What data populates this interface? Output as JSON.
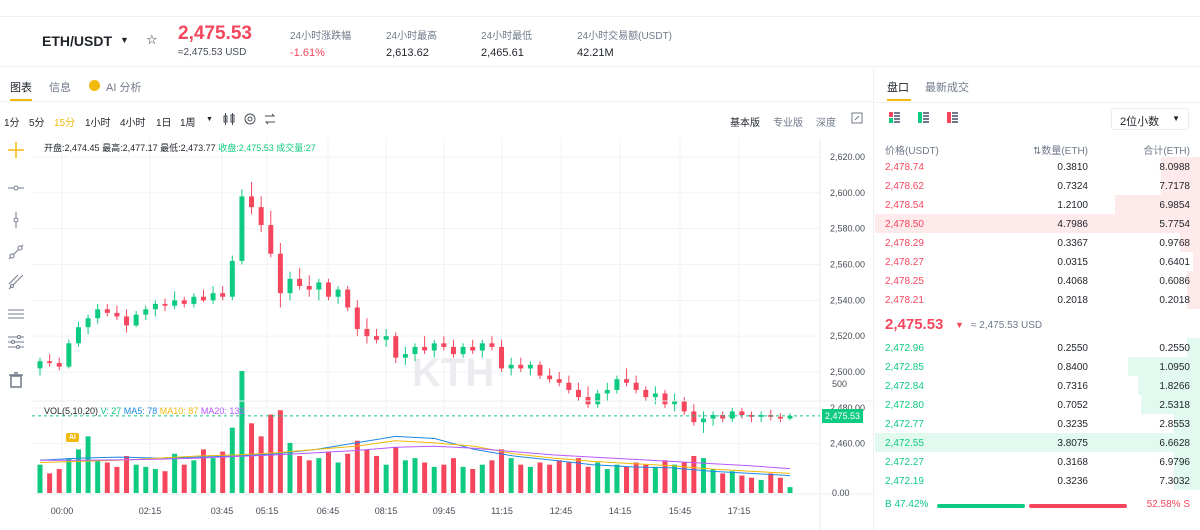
{
  "header": {
    "pair": "ETH/USDT",
    "pair_caret": "▼",
    "favorite_icon": "☆",
    "last_price": "2,475.53",
    "last_price_usd": "≈2,475.53 USD",
    "stats": [
      {
        "label": "24小时涨跌幅",
        "value": "-1.61%"
      },
      {
        "label": "24小时最高",
        "value": "2,613.62"
      },
      {
        "label": "24小时最低",
        "value": "2,465.61"
      },
      {
        "label": "24小时交易额(USDT)",
        "value": "42.21M"
      }
    ]
  },
  "chart_panel": {
    "tabs": [
      "图表",
      "信息",
      "AI 分析"
    ],
    "timeframes": [
      "1分",
      "5分",
      "15分",
      "1小时",
      "4小时",
      "1日",
      "1周"
    ],
    "timeframe_caret": "▼",
    "active_timeframe": "15分",
    "versions": [
      "基本版",
      "专业版",
      "深度"
    ],
    "active_version": "基本版",
    "drawing_tool_icons": [
      "crosshair-icon",
      "horizontal-line-icon",
      "vertical-line-icon",
      "trend-line-icon",
      "ray-icon",
      "fib-icon",
      "settings-lines-icon",
      "trash-icon"
    ],
    "ohlc": {
      "open": "开盘:2,474.45",
      "high": "最高:2,477.17",
      "low": "最低:2,473.77",
      "close": "收盘:2,475.53",
      "volume": "成交量:27"
    },
    "vol_legend": {
      "label": "VOL(5,10,20)",
      "v": "V: 27",
      "ma5": "MA5: 78",
      "ma10": "MA10: 87",
      "ma20": "MA20: 132"
    },
    "ai_badge": "AI",
    "watermark": "KTH",
    "current_price_tag": "2,475.53"
  },
  "chart_data": {
    "type": "candlestick",
    "price_axis": {
      "ticks": [
        "2,620.00",
        "2,600.00",
        "2,580.00",
        "2,560.00",
        "2,540.00",
        "2,520.00",
        "2,500.00",
        "2,480.00",
        "2,460.00"
      ],
      "range": [
        2450,
        2625
      ]
    },
    "volume_axis": {
      "ticks": [
        "500",
        "0.00"
      ],
      "range": [
        0,
        560
      ]
    },
    "time_labels": [
      "00:00",
      "02:15",
      "03:45",
      "05:15",
      "06:45",
      "08:15",
      "09:45",
      "11:15",
      "12:45",
      "14:15",
      "15:45",
      "17:15"
    ],
    "last_price": 2475.53,
    "colors": {
      "up": "#0ecb81",
      "down": "#f6465d",
      "ma5": "#f0b90b",
      "ma10": "#e28a4a",
      "ma20": "#b659ff"
    },
    "volume_ma": {
      "ma5": [
        150,
        160,
        165,
        160,
        165,
        170,
        180,
        200,
        230,
        260,
        250,
        200,
        170,
        150,
        130,
        120,
        115,
        100,
        90,
        80
      ],
      "ma10": [
        140,
        145,
        150,
        160,
        170,
        175,
        185,
        200,
        215,
        240,
        230,
        215,
        180,
        160,
        145,
        135,
        125,
        110,
        100,
        90
      ],
      "ma20": [
        150,
        150,
        152,
        155,
        160,
        168,
        175,
        185,
        195,
        210,
        215,
        205,
        190,
        175,
        165,
        155,
        145,
        135,
        125,
        112
      ]
    },
    "candles": [
      {
        "o": 2502,
        "h": 2508,
        "l": 2498,
        "c": 2506,
        "v": 130
      },
      {
        "o": 2506,
        "h": 2510,
        "l": 2503,
        "c": 2505,
        "v": 90
      },
      {
        "o": 2505,
        "h": 2508,
        "l": 2501,
        "c": 2503,
        "v": 110
      },
      {
        "o": 2503,
        "h": 2518,
        "l": 2502,
        "c": 2516,
        "v": 160
      },
      {
        "o": 2516,
        "h": 2528,
        "l": 2514,
        "c": 2525,
        "v": 200
      },
      {
        "o": 2525,
        "h": 2532,
        "l": 2521,
        "c": 2530,
        "v": 260
      },
      {
        "o": 2530,
        "h": 2538,
        "l": 2527,
        "c": 2535,
        "v": 150
      },
      {
        "o": 2535,
        "h": 2538,
        "l": 2531,
        "c": 2533,
        "v": 140
      },
      {
        "o": 2533,
        "h": 2537,
        "l": 2529,
        "c": 2531,
        "v": 120
      },
      {
        "o": 2531,
        "h": 2535,
        "l": 2522,
        "c": 2526,
        "v": 170
      },
      {
        "o": 2526,
        "h": 2534,
        "l": 2525,
        "c": 2532,
        "v": 130
      },
      {
        "o": 2532,
        "h": 2537,
        "l": 2529,
        "c": 2535,
        "v": 120
      },
      {
        "o": 2535,
        "h": 2540,
        "l": 2531,
        "c": 2538,
        "v": 110
      },
      {
        "o": 2538,
        "h": 2541,
        "l": 2534,
        "c": 2537,
        "v": 100
      },
      {
        "o": 2537,
        "h": 2545,
        "l": 2535,
        "c": 2540,
        "v": 180
      },
      {
        "o": 2540,
        "h": 2542,
        "l": 2536,
        "c": 2538,
        "v": 130
      },
      {
        "o": 2538,
        "h": 2544,
        "l": 2536,
        "c": 2542,
        "v": 150
      },
      {
        "o": 2542,
        "h": 2546,
        "l": 2539,
        "c": 2540,
        "v": 200
      },
      {
        "o": 2540,
        "h": 2548,
        "l": 2538,
        "c": 2544,
        "v": 160
      },
      {
        "o": 2544,
        "h": 2548,
        "l": 2540,
        "c": 2542,
        "v": 190
      },
      {
        "o": 2542,
        "h": 2565,
        "l": 2540,
        "c": 2562,
        "v": 300
      },
      {
        "o": 2562,
        "h": 2602,
        "l": 2560,
        "c": 2598,
        "v": 560
      },
      {
        "o": 2598,
        "h": 2606,
        "l": 2588,
        "c": 2592,
        "v": 320
      },
      {
        "o": 2592,
        "h": 2598,
        "l": 2578,
        "c": 2582,
        "v": 260
      },
      {
        "o": 2582,
        "h": 2590,
        "l": 2564,
        "c": 2566,
        "v": 360
      },
      {
        "o": 2566,
        "h": 2572,
        "l": 2536,
        "c": 2544,
        "v": 380
      },
      {
        "o": 2544,
        "h": 2556,
        "l": 2540,
        "c": 2552,
        "v": 230
      },
      {
        "o": 2552,
        "h": 2558,
        "l": 2546,
        "c": 2548,
        "v": 170
      },
      {
        "o": 2548,
        "h": 2554,
        "l": 2542,
        "c": 2546,
        "v": 150
      },
      {
        "o": 2546,
        "h": 2552,
        "l": 2540,
        "c": 2550,
        "v": 160
      },
      {
        "o": 2550,
        "h": 2552,
        "l": 2540,
        "c": 2542,
        "v": 190
      },
      {
        "o": 2542,
        "h": 2548,
        "l": 2538,
        "c": 2546,
        "v": 140
      },
      {
        "o": 2546,
        "h": 2548,
        "l": 2534,
        "c": 2536,
        "v": 180
      },
      {
        "o": 2536,
        "h": 2540,
        "l": 2520,
        "c": 2524,
        "v": 240
      },
      {
        "o": 2524,
        "h": 2530,
        "l": 2516,
        "c": 2520,
        "v": 200
      },
      {
        "o": 2520,
        "h": 2524,
        "l": 2516,
        "c": 2518,
        "v": 170
      },
      {
        "o": 2518,
        "h": 2524,
        "l": 2514,
        "c": 2520,
        "v": 130
      },
      {
        "o": 2520,
        "h": 2522,
        "l": 2505,
        "c": 2508,
        "v": 210
      },
      {
        "o": 2508,
        "h": 2514,
        "l": 2504,
        "c": 2510,
        "v": 150
      },
      {
        "o": 2510,
        "h": 2516,
        "l": 2506,
        "c": 2514,
        "v": 160
      },
      {
        "o": 2514,
        "h": 2520,
        "l": 2510,
        "c": 2512,
        "v": 140
      },
      {
        "o": 2512,
        "h": 2518,
        "l": 2508,
        "c": 2516,
        "v": 120
      },
      {
        "o": 2516,
        "h": 2520,
        "l": 2512,
        "c": 2514,
        "v": 130
      },
      {
        "o": 2514,
        "h": 2518,
        "l": 2508,
        "c": 2510,
        "v": 160
      },
      {
        "o": 2510,
        "h": 2516,
        "l": 2508,
        "c": 2514,
        "v": 120
      },
      {
        "o": 2514,
        "h": 2518,
        "l": 2510,
        "c": 2512,
        "v": 110
      },
      {
        "o": 2512,
        "h": 2518,
        "l": 2508,
        "c": 2516,
        "v": 130
      },
      {
        "o": 2516,
        "h": 2520,
        "l": 2512,
        "c": 2514,
        "v": 150
      },
      {
        "o": 2514,
        "h": 2518,
        "l": 2500,
        "c": 2502,
        "v": 200
      },
      {
        "o": 2502,
        "h": 2508,
        "l": 2498,
        "c": 2504,
        "v": 160
      },
      {
        "o": 2504,
        "h": 2508,
        "l": 2500,
        "c": 2502,
        "v": 130
      },
      {
        "o": 2502,
        "h": 2506,
        "l": 2498,
        "c": 2504,
        "v": 120
      },
      {
        "o": 2504,
        "h": 2506,
        "l": 2496,
        "c": 2498,
        "v": 140
      },
      {
        "o": 2498,
        "h": 2502,
        "l": 2494,
        "c": 2496,
        "v": 130
      },
      {
        "o": 2496,
        "h": 2500,
        "l": 2492,
        "c": 2494,
        "v": 150
      },
      {
        "o": 2494,
        "h": 2498,
        "l": 2488,
        "c": 2490,
        "v": 140
      },
      {
        "o": 2490,
        "h": 2494,
        "l": 2484,
        "c": 2486,
        "v": 160
      },
      {
        "o": 2486,
        "h": 2492,
        "l": 2480,
        "c": 2482,
        "v": 120
      },
      {
        "o": 2482,
        "h": 2490,
        "l": 2480,
        "c": 2488,
        "v": 140
      },
      {
        "o": 2488,
        "h": 2494,
        "l": 2484,
        "c": 2490,
        "v": 110
      },
      {
        "o": 2490,
        "h": 2498,
        "l": 2488,
        "c": 2496,
        "v": 130
      },
      {
        "o": 2496,
        "h": 2502,
        "l": 2492,
        "c": 2494,
        "v": 120
      },
      {
        "o": 2494,
        "h": 2498,
        "l": 2488,
        "c": 2490,
        "v": 140
      },
      {
        "o": 2490,
        "h": 2492,
        "l": 2484,
        "c": 2486,
        "v": 130
      },
      {
        "o": 2486,
        "h": 2492,
        "l": 2482,
        "c": 2488,
        "v": 120
      },
      {
        "o": 2488,
        "h": 2490,
        "l": 2480,
        "c": 2482,
        "v": 150
      },
      {
        "o": 2482,
        "h": 2488,
        "l": 2478,
        "c": 2484,
        "v": 130
      },
      {
        "o": 2484,
        "h": 2486,
        "l": 2476,
        "c": 2478,
        "v": 140
      },
      {
        "o": 2478,
        "h": 2482,
        "l": 2470,
        "c": 2472,
        "v": 170
      },
      {
        "o": 2472,
        "h": 2478,
        "l": 2466,
        "c": 2474,
        "v": 160
      },
      {
        "o": 2474,
        "h": 2478,
        "l": 2470,
        "c": 2476,
        "v": 110
      },
      {
        "o": 2476,
        "h": 2478,
        "l": 2472,
        "c": 2474,
        "v": 90
      },
      {
        "o": 2474,
        "h": 2480,
        "l": 2472,
        "c": 2478,
        "v": 100
      },
      {
        "o": 2478,
        "h": 2480,
        "l": 2474,
        "c": 2476,
        "v": 80
      },
      {
        "o": 2476,
        "h": 2478,
        "l": 2472,
        "c": 2475,
        "v": 70
      },
      {
        "o": 2475,
        "h": 2478,
        "l": 2472,
        "c": 2476,
        "v": 60
      },
      {
        "o": 2476,
        "h": 2479,
        "l": 2473,
        "c": 2475,
        "v": 90
      },
      {
        "o": 2475,
        "h": 2477,
        "l": 2472,
        "c": 2474,
        "v": 70
      },
      {
        "o": 2474,
        "h": 2477,
        "l": 2473,
        "c": 2475.53,
        "v": 27
      }
    ]
  },
  "order_book": {
    "tabs": [
      "盘口",
      "最新成交"
    ],
    "decimals": "2位小数",
    "decimals_caret": "▼",
    "headers": {
      "price": "价格(USDT)",
      "qty": "⇅数量(ETH)",
      "total": "合计(ETH)"
    },
    "asks": [
      {
        "price": "2,478.74",
        "qty": "0.3810",
        "total": "8.0988",
        "depth": 0.12
      },
      {
        "price": "2,478.62",
        "qty": "0.7324",
        "total": "7.7178",
        "depth": 0.12
      },
      {
        "price": "2,478.54",
        "qty": "1.2100",
        "total": "6.9854",
        "depth": 0.26
      },
      {
        "price": "2,478.50",
        "qty": "4.7986",
        "total": "5.7754",
        "depth": 1.0
      },
      {
        "price": "2,478.29",
        "qty": "0.3367",
        "total": "0.9768",
        "depth": 0.06
      },
      {
        "price": "2,478.27",
        "qty": "0.0315",
        "total": "0.6401",
        "depth": 0.02
      },
      {
        "price": "2,478.25",
        "qty": "0.4068",
        "total": "0.6086",
        "depth": 0.04
      },
      {
        "price": "2,478.21",
        "qty": "0.2018",
        "total": "0.2018",
        "depth": 0.04
      }
    ],
    "mid_price": "2,475.53",
    "mid_arrow": "▼",
    "mid_usd": "≈ 2,475.53 USD",
    "bids": [
      {
        "price": "2,472.96",
        "qty": "0.2550",
        "total": "0.2550",
        "depth": 0.04
      },
      {
        "price": "2,472.85",
        "qty": "0.8400",
        "total": "1.0950",
        "depth": 0.22
      },
      {
        "price": "2,472.84",
        "qty": "0.7316",
        "total": "1.8266",
        "depth": 0.19
      },
      {
        "price": "2,472.80",
        "qty": "0.7052",
        "total": "2.5318",
        "depth": 0.18
      },
      {
        "price": "2,472.77",
        "qty": "0.3235",
        "total": "2.8553",
        "depth": 0.08
      },
      {
        "price": "2,472.55",
        "qty": "3.8075",
        "total": "6.6628",
        "depth": 1.0
      },
      {
        "price": "2,472.27",
        "qty": "0.3168",
        "total": "6.9796",
        "depth": 0.08
      },
      {
        "price": "2,472.19",
        "qty": "0.3236",
        "total": "7.3032",
        "depth": 0.08
      }
    ],
    "buy_ratio": "B 47.42%",
    "sell_ratio": "52.58% S",
    "buy_ratio_value": 47.42,
    "colors": {
      "buy": "#0ecb81",
      "sell": "#f6465d"
    }
  }
}
